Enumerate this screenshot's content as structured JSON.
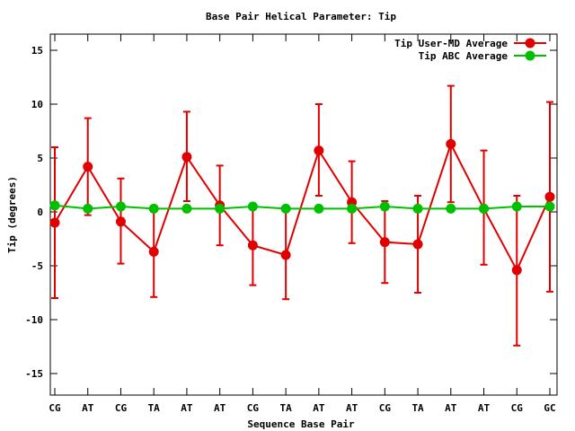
{
  "chart_data": {
    "type": "line",
    "title": "Base Pair Helical Parameter: Tip",
    "xlabel": "Sequence Base Pair",
    "ylabel": "Tip (degrees)",
    "categories": [
      "CG",
      "AT",
      "CG",
      "TA",
      "AT",
      "AT",
      "CG",
      "TA",
      "AT",
      "AT",
      "CG",
      "TA",
      "AT",
      "AT",
      "CG",
      "GC"
    ],
    "ylim": [
      -17,
      16.5
    ],
    "yticks": [
      -15,
      -10,
      -5,
      0,
      5,
      10,
      15
    ],
    "grid": false,
    "legend_position": "top-right",
    "series": [
      {
        "name": "Tip User-MD Average",
        "color": "#e00000",
        "values": [
          -1.0,
          4.2,
          -0.9,
          -3.7,
          5.1,
          0.6,
          -3.1,
          -4.0,
          5.7,
          0.9,
          -2.8,
          -3.0,
          6.3,
          0.3,
          -5.4,
          1.4
        ],
        "error_low": [
          -8.0,
          -0.3,
          -4.8,
          -7.9,
          1.0,
          -3.1,
          -6.8,
          -8.1,
          1.5,
          -2.9,
          -6.6,
          -7.5,
          0.9,
          -4.9,
          -12.4,
          -7.4
        ],
        "error_high": [
          6.0,
          8.7,
          3.1,
          0.3,
          9.3,
          4.3,
          0.4,
          0.1,
          10.0,
          4.7,
          1.0,
          1.5,
          11.7,
          5.7,
          1.5,
          10.2
        ]
      },
      {
        "name": "Tip ABC Average",
        "color": "#00c000",
        "values": [
          0.6,
          0.3,
          0.5,
          0.3,
          0.3,
          0.3,
          0.5,
          0.3,
          0.3,
          0.3,
          0.5,
          0.3,
          0.3,
          0.3,
          0.5,
          0.5
        ]
      }
    ]
  }
}
